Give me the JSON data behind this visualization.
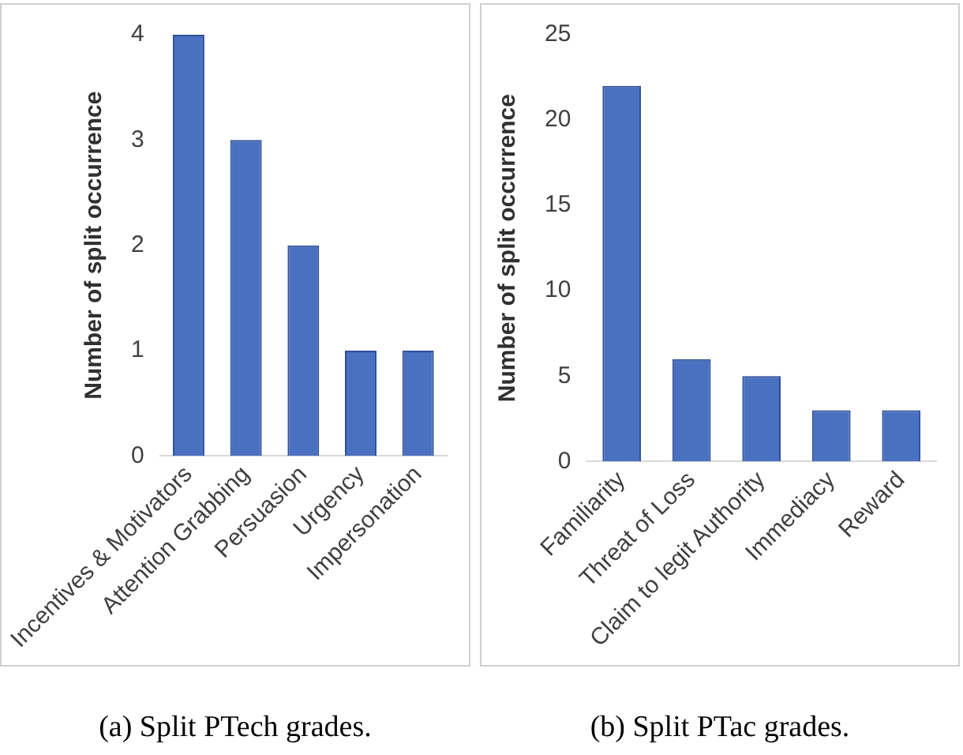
{
  "chart_data": [
    {
      "type": "bar",
      "ylabel": "Number of split occurrence",
      "categories": [
        "Incentives & Motivators",
        "Attention Grabbing",
        "Persuasion",
        "Urgency",
        "Impersonation"
      ],
      "values": [
        4,
        3,
        2,
        1,
        1
      ],
      "color": "#4a70c0",
      "ylim": [
        0,
        4
      ],
      "yticks": [
        0,
        1,
        2,
        3,
        4
      ],
      "annotations": [
        "(a) Split PTech grades."
      ]
    },
    {
      "type": "bar",
      "ylabel": "Number of split occurrence",
      "categories": [
        "Familiarity",
        "Threat of Loss",
        "Claim to legit Authority",
        "Immediacy",
        "Reward"
      ],
      "values": [
        22,
        6,
        5,
        3,
        3
      ],
      "color": "#4a70c0",
      "ylim": [
        0,
        25
      ],
      "yticks": [
        0,
        5,
        10,
        15,
        20,
        25
      ],
      "annotations": [
        "(b) Split PTac grades."
      ]
    }
  ]
}
